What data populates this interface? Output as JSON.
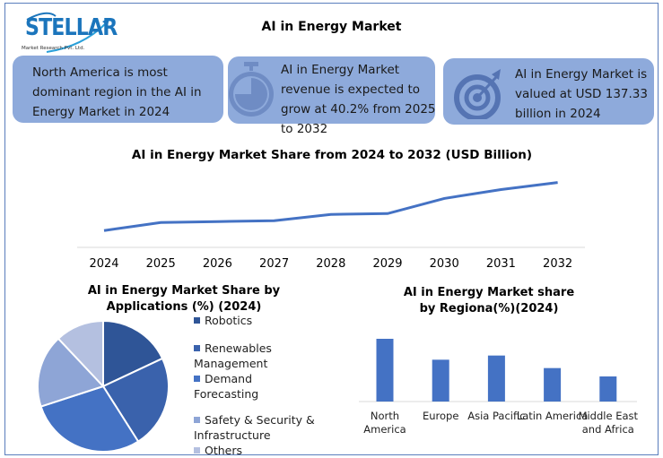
{
  "logo": {
    "name": "STELLAR",
    "tagline": "Market Research Pvt. Ltd."
  },
  "title": "AI in Energy Market",
  "cards": [
    {
      "text": "North America is most dominant region in the AI in Energy Market in 2024",
      "icon": ""
    },
    {
      "text": "AI in Energy Market revenue is expected to grow at 40.2% from 2025 to 2032",
      "icon": "stopwatch-icon"
    },
    {
      "text": "AI in Energy Market is valued at USD 137.33 billion in 2024",
      "icon": "target-icon"
    }
  ],
  "colors": {
    "card": "#8eaadb",
    "line": "#4472c4",
    "bar": "#4472c4",
    "pie": [
      "#2f5597",
      "#3a62ac",
      "#4472c4",
      "#8ea5d6",
      "#b4c0e0"
    ]
  },
  "chart_data": [
    {
      "type": "line",
      "title": "AI in  Energy Market Share from 2024 to 2032 (USD Billion)",
      "categories": [
        "2024",
        "2025",
        "2026",
        "2027",
        "2028",
        "2029",
        "2030",
        "2031",
        "2032"
      ],
      "values": [
        137,
        202,
        210,
        217,
        268,
        275,
        398,
        470,
        528
      ],
      "ylim": [
        0,
        700
      ],
      "grid": false,
      "xlabel": "",
      "ylabel": ""
    },
    {
      "type": "pie",
      "title": "AI in Energy Market  Share by Applications (%) (2024)",
      "categories": [
        "Robotics",
        "Renewables Management",
        "Demand Forecasting",
        "Safety & Security & Infrastructure",
        "Others"
      ],
      "values": [
        18,
        23,
        29,
        18,
        12
      ],
      "legend": "right"
    },
    {
      "type": "bar",
      "title": "AI in Energy Market share by Regiona(%)(2024)",
      "categories": [
        "North America",
        "Europe",
        "Asia Pacific",
        "Latin America",
        "Middle East and Africa"
      ],
      "values": [
        30,
        20,
        22,
        16,
        12
      ],
      "ylim": [
        0,
        36
      ],
      "grid": false
    }
  ]
}
